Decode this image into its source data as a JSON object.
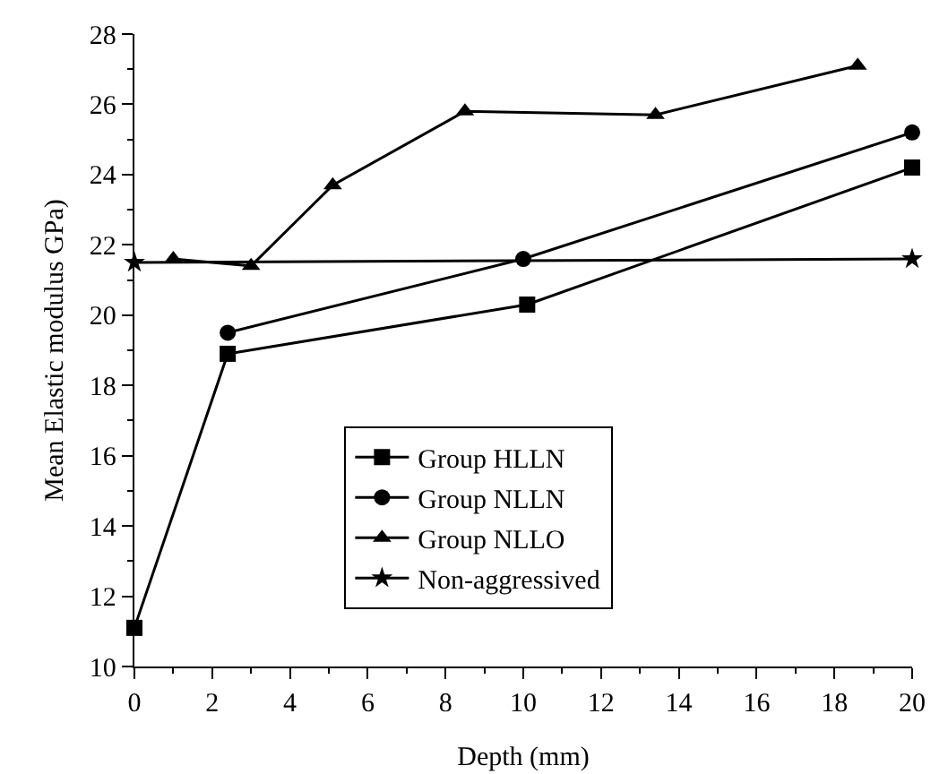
{
  "chart_data": {
    "type": "line",
    "xlabel": "Depth (mm)",
    "ylabel": "Mean Elastic modulus GPa)",
    "xlim": [
      0,
      20
    ],
    "xticks": [
      0,
      2,
      4,
      6,
      8,
      10,
      12,
      14,
      16,
      18,
      20
    ],
    "ylim": [
      10,
      28
    ],
    "yticks": [
      10,
      12,
      14,
      16,
      18,
      20,
      22,
      24,
      26,
      28
    ],
    "grid": false,
    "legend": "center",
    "series": [
      {
        "name": "Group HLLN",
        "color": "#000000",
        "marker": "square",
        "x": [
          0,
          2.4,
          10.1,
          20
        ],
        "values": [
          11.1,
          18.9,
          20.3,
          24.2
        ]
      },
      {
        "name": "Group NLLN",
        "color": "#000000",
        "marker": "circle",
        "x": [
          2.4,
          10,
          20
        ],
        "values": [
          19.5,
          21.6,
          25.2
        ]
      },
      {
        "name": "Group NLLO",
        "color": "#000000",
        "marker": "triangle",
        "x": [
          1,
          3,
          5.1,
          8.5,
          13.4,
          18.6
        ],
        "values": [
          21.6,
          21.4,
          23.7,
          25.8,
          25.7,
          27.1
        ]
      },
      {
        "name": "Non-aggressived",
        "color": "#000000",
        "marker": "star",
        "x": [
          0,
          20
        ],
        "values": [
          21.5,
          21.6
        ]
      }
    ]
  }
}
